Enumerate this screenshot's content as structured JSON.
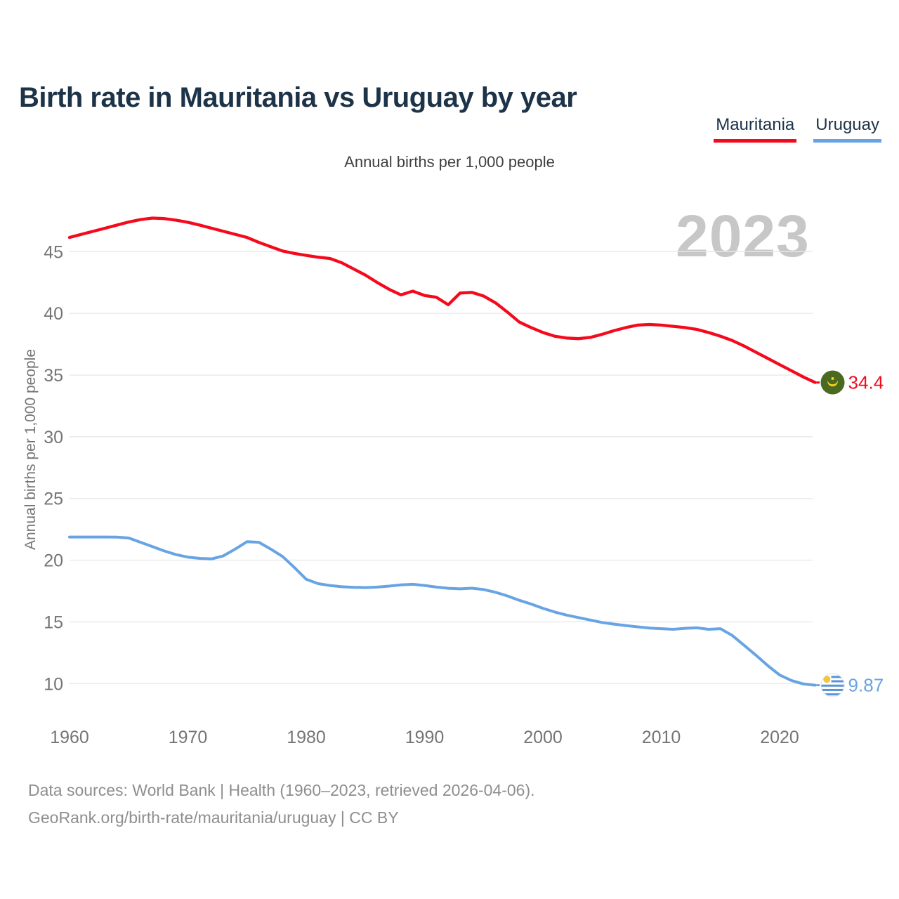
{
  "header": {
    "title": "Birth rate in Mauritania vs Uruguay by year"
  },
  "legend": {
    "items": [
      {
        "label": "Mauritania",
        "color": "#f40a1c"
      },
      {
        "label": "Uruguay",
        "color": "#68a4e4"
      }
    ]
  },
  "chart": {
    "subtitle": "Annual births per 1,000 people",
    "watermark_year": "2023",
    "y_axis_title": "Annual births per 1,000 people"
  },
  "footer": {
    "line1": "Data sources: World Bank | Health (1960–2023, retrieved 2026-04-06).",
    "line2": "GeoRank.org/birth-rate/mauritania/uruguay | CC BY"
  },
  "colors": {
    "title_navy": "#1d3348",
    "tick_gray": "#757575",
    "gridline": "#e9e9e9",
    "watermark": "#c7c7c7"
  },
  "chart_data": {
    "type": "line",
    "title": "Birth rate in Mauritania vs Uruguay by year",
    "subtitle": "Annual births per 1,000 people",
    "xlabel": "",
    "ylabel": "Annual births per 1,000 people",
    "xlim": [
      1960,
      2023
    ],
    "ylim": [
      8,
      49
    ],
    "x_ticks": [
      1960,
      1970,
      1980,
      1990,
      2000,
      2010,
      2020
    ],
    "y_ticks": [
      10,
      15,
      20,
      25,
      30,
      35,
      40,
      45
    ],
    "grid": "horizontal",
    "legend_position": "top-right",
    "years": [
      1960,
      1961,
      1962,
      1963,
      1964,
      1965,
      1966,
      1967,
      1968,
      1969,
      1970,
      1971,
      1972,
      1973,
      1974,
      1975,
      1976,
      1977,
      1978,
      1979,
      1980,
      1981,
      1982,
      1983,
      1984,
      1985,
      1986,
      1987,
      1988,
      1989,
      1990,
      1991,
      1992,
      1993,
      1994,
      1995,
      1996,
      1997,
      1998,
      1999,
      2000,
      2001,
      2002,
      2003,
      2004,
      2005,
      2006,
      2007,
      2008,
      2009,
      2010,
      2011,
      2012,
      2013,
      2014,
      2015,
      2016,
      2017,
      2018,
      2019,
      2020,
      2021,
      2022,
      2023
    ],
    "series": [
      {
        "name": "Mauritania",
        "color": "#f40a1c",
        "end_label": "34.4",
        "end_value": 34.4,
        "flag_icon": "mauritania-flag-icon",
        "values": [
          46.15,
          46.4,
          46.65,
          46.9,
          47.15,
          47.4,
          47.6,
          47.72,
          47.68,
          47.55,
          47.38,
          47.15,
          46.9,
          46.65,
          46.4,
          46.15,
          45.75,
          45.4,
          45.05,
          44.85,
          44.7,
          44.55,
          44.45,
          44.1,
          43.6,
          43.1,
          42.5,
          41.95,
          41.5,
          41.8,
          41.45,
          41.3,
          40.7,
          41.65,
          41.7,
          41.4,
          40.85,
          40.1,
          39.3,
          38.85,
          38.45,
          38.15,
          38.0,
          37.95,
          38.05,
          38.3,
          38.6,
          38.85,
          39.05,
          39.1,
          39.05,
          38.95,
          38.85,
          38.7,
          38.45,
          38.15,
          37.8,
          37.35,
          36.85,
          36.35,
          35.85,
          35.35,
          34.85,
          34.4
        ]
      },
      {
        "name": "Uruguay",
        "color": "#68a4e4",
        "end_label": "9.87",
        "end_value": 9.87,
        "flag_icon": "uruguay-flag-icon",
        "values": [
          21.88,
          21.88,
          21.88,
          21.88,
          21.87,
          21.8,
          21.45,
          21.1,
          20.75,
          20.45,
          20.25,
          20.15,
          20.1,
          20.35,
          20.9,
          21.5,
          21.45,
          20.9,
          20.3,
          19.4,
          18.45,
          18.1,
          17.95,
          17.85,
          17.8,
          17.78,
          17.82,
          17.9,
          18.0,
          18.05,
          17.95,
          17.82,
          17.72,
          17.68,
          17.73,
          17.62,
          17.4,
          17.1,
          16.75,
          16.45,
          16.1,
          15.8,
          15.55,
          15.35,
          15.15,
          14.95,
          14.82,
          14.7,
          14.6,
          14.5,
          14.45,
          14.4,
          14.48,
          14.52,
          14.4,
          14.45,
          13.9,
          13.1,
          12.3,
          11.45,
          10.7,
          10.25,
          9.97,
          9.87
        ]
      }
    ]
  }
}
